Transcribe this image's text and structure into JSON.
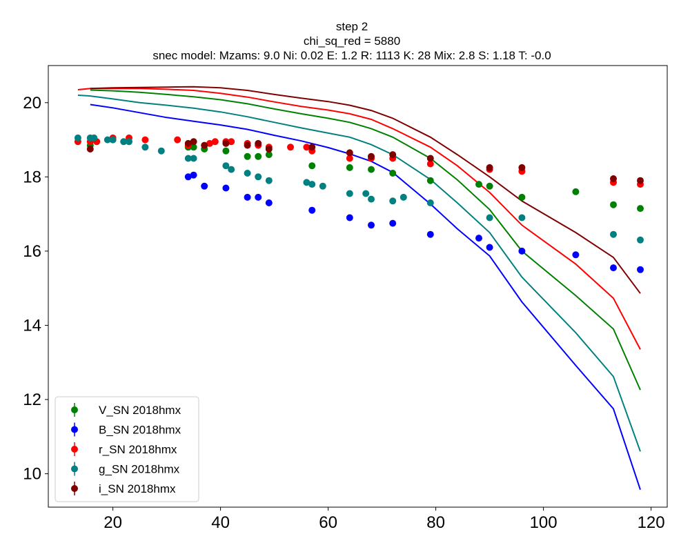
{
  "chart_data": {
    "type": "scatter",
    "title_lines": [
      "step 2",
      "chi_sq_red = 5880",
      "snec model: Mzams: 9.0 Ni: 0.02 E: 1.2 R: 1113 K: 28 Mix: 2.8 S: 1.18 T: -0.0"
    ],
    "xlim": [
      8,
      123
    ],
    "ylim": [
      9.1,
      21.0
    ],
    "xticks": [
      20,
      40,
      60,
      80,
      100,
      120
    ],
    "yticks": [
      10,
      12,
      14,
      16,
      18,
      20
    ],
    "grid": false,
    "legend_position": "lower-left",
    "series": [
      {
        "name": "V_SN 2018hmx",
        "color": "#008000",
        "points": [
          [
            15.8,
            18.85
          ],
          [
            20,
            19.0
          ],
          [
            34,
            18.8
          ],
          [
            35,
            18.8
          ],
          [
            37,
            18.75
          ],
          [
            41,
            18.7
          ],
          [
            45,
            18.55
          ],
          [
            47,
            18.55
          ],
          [
            49,
            18.6
          ],
          [
            57,
            18.3
          ],
          [
            64,
            18.25
          ],
          [
            68,
            18.2
          ],
          [
            72,
            18.1
          ],
          [
            79,
            17.9
          ],
          [
            88,
            17.8
          ],
          [
            90,
            17.75
          ],
          [
            96,
            17.45
          ],
          [
            106,
            17.6
          ],
          [
            113,
            17.25
          ],
          [
            118,
            17.15
          ]
        ],
        "model": [
          [
            15.8,
            20.34
          ],
          [
            20,
            20.32
          ],
          [
            25,
            20.28
          ],
          [
            30,
            20.22
          ],
          [
            35,
            20.16
          ],
          [
            40,
            20.08
          ],
          [
            45,
            19.97
          ],
          [
            50,
            19.83
          ],
          [
            55,
            19.7
          ],
          [
            60,
            19.58
          ],
          [
            64,
            19.47
          ],
          [
            68,
            19.3
          ],
          [
            72,
            19.07
          ],
          [
            79,
            18.5
          ],
          [
            84,
            17.92
          ],
          [
            90,
            17.12
          ],
          [
            96,
            16.0
          ],
          [
            106,
            14.8
          ],
          [
            113,
            13.9
          ],
          [
            118,
            12.26
          ]
        ]
      },
      {
        "name": "B_SN 2018hmx",
        "color": "#0000ff",
        "points": [
          [
            34,
            18.0
          ],
          [
            35,
            18.05
          ],
          [
            37,
            17.75
          ],
          [
            41,
            17.7
          ],
          [
            45,
            17.45
          ],
          [
            47,
            17.45
          ],
          [
            49,
            17.3
          ],
          [
            57,
            17.1
          ],
          [
            64,
            16.9
          ],
          [
            68,
            16.7
          ],
          [
            72,
            16.75
          ],
          [
            79,
            16.45
          ],
          [
            88,
            16.35
          ],
          [
            90,
            16.1
          ],
          [
            96,
            16.0
          ],
          [
            106,
            15.9
          ],
          [
            113,
            15.55
          ],
          [
            118,
            15.5
          ]
        ],
        "model": [
          [
            15.8,
            19.95
          ],
          [
            20,
            19.86
          ],
          [
            25,
            19.73
          ],
          [
            30,
            19.6
          ],
          [
            35,
            19.5
          ],
          [
            40,
            19.4
          ],
          [
            45,
            19.28
          ],
          [
            50,
            19.12
          ],
          [
            55,
            18.97
          ],
          [
            60,
            18.79
          ],
          [
            64,
            18.62
          ],
          [
            68,
            18.42
          ],
          [
            72,
            18.12
          ],
          [
            79,
            17.27
          ],
          [
            84,
            16.6
          ],
          [
            90,
            15.87
          ],
          [
            96,
            14.63
          ],
          [
            106,
            12.92
          ],
          [
            113,
            11.75
          ],
          [
            118,
            9.57
          ]
        ]
      },
      {
        "name": "r_SN 2018hmx",
        "color": "#ff0000",
        "points": [
          [
            13.5,
            18.95
          ],
          [
            15.8,
            18.95
          ],
          [
            17,
            18.95
          ],
          [
            20,
            19.05
          ],
          [
            23,
            19.05
          ],
          [
            26,
            19.0
          ],
          [
            32,
            19.0
          ],
          [
            34,
            18.85
          ],
          [
            38,
            18.9
          ],
          [
            39,
            18.95
          ],
          [
            41,
            18.95
          ],
          [
            42,
            18.95
          ],
          [
            45,
            18.9
          ],
          [
            47,
            18.85
          ],
          [
            49,
            18.8
          ],
          [
            53,
            18.8
          ],
          [
            56,
            18.8
          ],
          [
            57,
            18.7
          ],
          [
            64,
            18.5
          ],
          [
            68,
            18.5
          ],
          [
            72,
            18.5
          ],
          [
            79,
            18.35
          ],
          [
            90,
            18.2
          ],
          [
            96,
            18.15
          ],
          [
            113,
            17.85
          ],
          [
            118,
            17.8
          ]
        ],
        "model": [
          [
            13.5,
            20.35
          ],
          [
            15.8,
            20.38
          ],
          [
            20,
            20.38
          ],
          [
            25,
            20.38
          ],
          [
            30,
            20.36
          ],
          [
            35,
            20.33
          ],
          [
            40,
            20.25
          ],
          [
            45,
            20.15
          ],
          [
            50,
            20.02
          ],
          [
            55,
            19.9
          ],
          [
            60,
            19.8
          ],
          [
            64,
            19.7
          ],
          [
            68,
            19.55
          ],
          [
            72,
            19.3
          ],
          [
            79,
            18.8
          ],
          [
            84,
            18.3
          ],
          [
            90,
            17.58
          ],
          [
            96,
            16.7
          ],
          [
            106,
            15.65
          ],
          [
            113,
            14.73
          ],
          [
            118,
            13.35
          ]
        ]
      },
      {
        "name": "g_SN 2018hmx",
        "color": "#008080",
        "points": [
          [
            13.5,
            19.05
          ],
          [
            15.8,
            19.05
          ],
          [
            16.5,
            19.05
          ],
          [
            19,
            19.0
          ],
          [
            20,
            19.0
          ],
          [
            22,
            18.95
          ],
          [
            23,
            18.95
          ],
          [
            26,
            18.8
          ],
          [
            29,
            18.7
          ],
          [
            34,
            18.5
          ],
          [
            35,
            18.5
          ],
          [
            41,
            18.3
          ],
          [
            42,
            18.2
          ],
          [
            45,
            18.1
          ],
          [
            47,
            18.0
          ],
          [
            49,
            17.9
          ],
          [
            56,
            17.85
          ],
          [
            57,
            17.8
          ],
          [
            59,
            17.75
          ],
          [
            64,
            17.55
          ],
          [
            67,
            17.55
          ],
          [
            68,
            17.4
          ],
          [
            72,
            17.35
          ],
          [
            74,
            17.45
          ],
          [
            79,
            17.3
          ],
          [
            90,
            16.9
          ],
          [
            96,
            16.9
          ],
          [
            113,
            16.45
          ],
          [
            118,
            16.3
          ]
        ],
        "model": [
          [
            13.5,
            20.2
          ],
          [
            15.8,
            20.18
          ],
          [
            20,
            20.1
          ],
          [
            25,
            20.0
          ],
          [
            30,
            19.93
          ],
          [
            35,
            19.85
          ],
          [
            40,
            19.75
          ],
          [
            45,
            19.62
          ],
          [
            50,
            19.47
          ],
          [
            55,
            19.32
          ],
          [
            60,
            19.18
          ],
          [
            64,
            19.07
          ],
          [
            68,
            18.87
          ],
          [
            72,
            18.6
          ],
          [
            79,
            17.93
          ],
          [
            84,
            17.3
          ],
          [
            90,
            16.5
          ],
          [
            96,
            15.3
          ],
          [
            106,
            13.8
          ],
          [
            113,
            12.62
          ],
          [
            118,
            10.6
          ]
        ]
      },
      {
        "name": "i_SN 2018hmx",
        "color": "#800000",
        "points": [
          [
            15.8,
            18.75
          ],
          [
            34,
            18.9
          ],
          [
            35,
            18.95
          ],
          [
            37,
            18.85
          ],
          [
            41,
            18.9
          ],
          [
            45,
            18.85
          ],
          [
            47,
            18.9
          ],
          [
            49,
            18.75
          ],
          [
            57,
            18.8
          ],
          [
            64,
            18.65
          ],
          [
            68,
            18.55
          ],
          [
            72,
            18.6
          ],
          [
            79,
            18.5
          ],
          [
            90,
            18.25
          ],
          [
            96,
            18.25
          ],
          [
            113,
            17.95
          ],
          [
            118,
            17.9
          ]
        ],
        "model": [
          [
            15.8,
            20.38
          ],
          [
            20,
            20.4
          ],
          [
            25,
            20.41
          ],
          [
            30,
            20.42
          ],
          [
            35,
            20.43
          ],
          [
            40,
            20.4
          ],
          [
            45,
            20.33
          ],
          [
            50,
            20.22
          ],
          [
            55,
            20.12
          ],
          [
            60,
            20.03
          ],
          [
            64,
            19.93
          ],
          [
            68,
            19.79
          ],
          [
            72,
            19.58
          ],
          [
            79,
            19.07
          ],
          [
            84,
            18.6
          ],
          [
            90,
            18.0
          ],
          [
            96,
            17.35
          ],
          [
            106,
            16.5
          ],
          [
            113,
            15.83
          ],
          [
            118,
            14.86
          ]
        ]
      }
    ]
  }
}
